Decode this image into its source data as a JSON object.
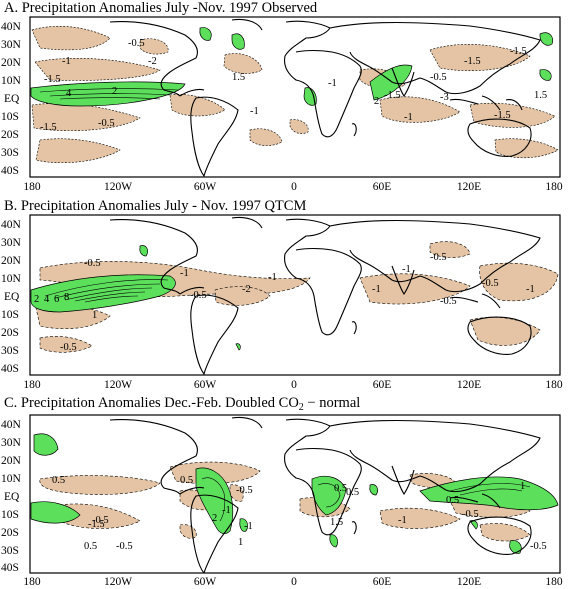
{
  "panels": [
    {
      "title": "A. Precipitation Anomalies July -Nov. 1997 Observed",
      "contour_labels": [
        "-0.5",
        "-1.5",
        "-1",
        "-2",
        "4",
        "2",
        "-0.5",
        "-1.5",
        "1.5",
        "-1",
        "-1",
        "-1.5",
        "-1.5",
        "-0.5",
        "2",
        "-1.5",
        "-1.5",
        "-3",
        "-1",
        "1.5"
      ]
    },
    {
      "title": "B. Precipitation Anomalies July - Nov. 1997 QTCM",
      "contour_labels": [
        "-0.5",
        "-1",
        "-0.5",
        "-2",
        "-1",
        "-1",
        "-0.5",
        "-1",
        "-0.5",
        "-1",
        "-0.5",
        "2",
        "4",
        "6",
        "8",
        "1",
        "-0.5"
      ]
    },
    {
      "title_main": "C. Precipitation Anomalies Dec.-Feb. Doubled CO",
      "title_sub": "2",
      "title_tail": " − normal",
      "contour_labels": [
        "0.5",
        "-0.5",
        "-0.5",
        "0.5",
        "2",
        "-1",
        "-1",
        "0.5",
        "1.5",
        "0.5",
        "0.5",
        "1",
        "-0.5",
        "-1",
        "-1.5",
        "0.5",
        "-0.5",
        "-0.5",
        "1"
      ]
    }
  ],
  "latitude_labels": [
    "40N",
    "30N",
    "20N",
    "10N",
    "EQ",
    "10S",
    "20S",
    "30S",
    "40S"
  ],
  "longitude_labels": [
    "180",
    "120W",
    "60W",
    "0",
    "60E",
    "120E",
    "180"
  ],
  "colors": {
    "negative_fill": "#e4c4a4",
    "positive_fill": "#5ce05c",
    "frame": "#000000",
    "coast": "#000000"
  },
  "legend_semantics": {
    "positive": "green shading",
    "negative": "tan shading, dashed contours"
  }
}
